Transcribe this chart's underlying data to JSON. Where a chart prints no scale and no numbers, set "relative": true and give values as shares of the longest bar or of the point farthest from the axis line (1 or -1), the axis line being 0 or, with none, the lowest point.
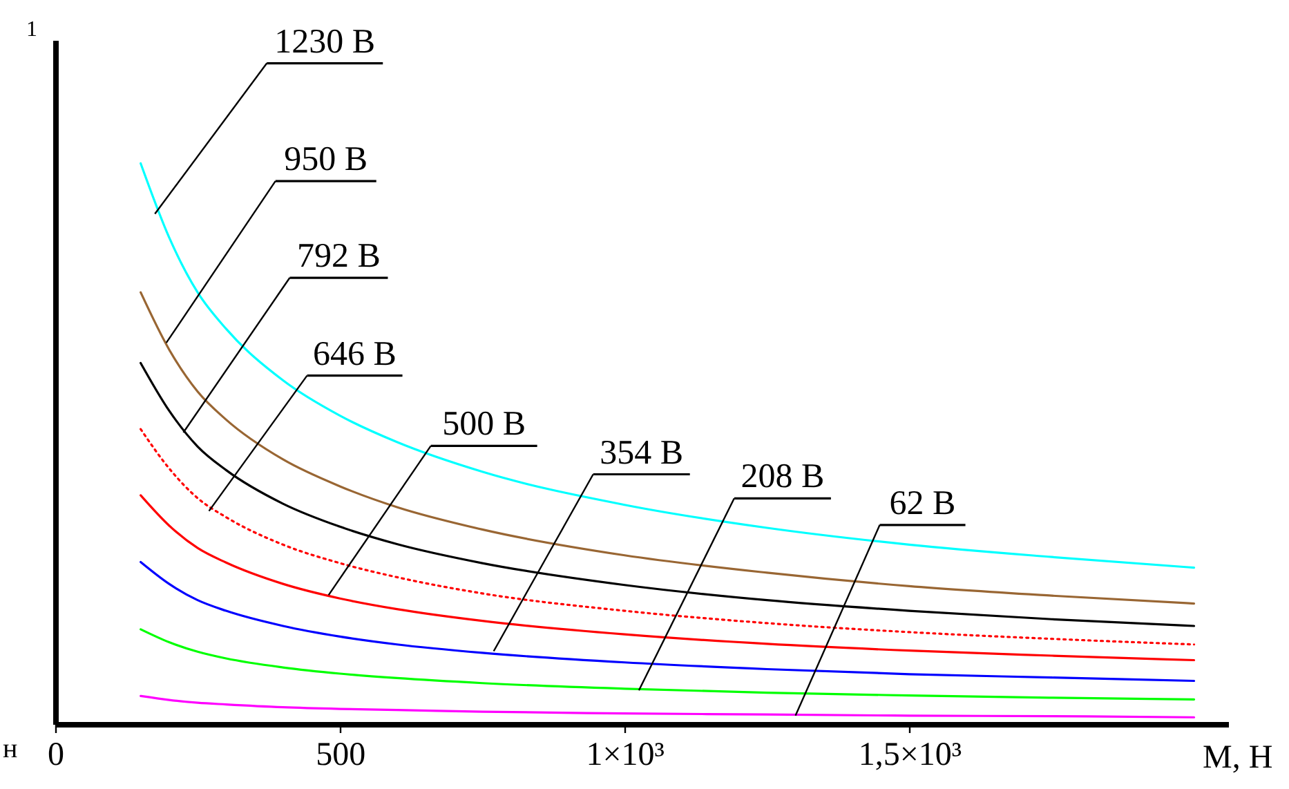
{
  "chart_data": {
    "type": "line",
    "relative": true,
    "xlabel": "M, Н",
    "xlim": [
      0,
      2060
    ],
    "xticks": [
      0,
      500,
      {
        "value": 1000,
        "label": "1×10³"
      },
      {
        "value": 1500,
        "label": "1,5×10³"
      }
    ],
    "x": [
      150,
      200,
      250,
      300,
      400,
      500,
      600,
      750,
      1000,
      1250,
      1500,
      1750,
      2000
    ],
    "line_style": "solid",
    "grid": false,
    "series": [
      {
        "color": "#00ffff",
        "values": [
          1.0,
          0.868,
          0.77,
          0.705,
          0.613,
          0.55,
          0.503,
          0.45,
          0.391,
          0.35,
          0.32,
          0.298,
          0.279
        ]
      },
      {
        "color": "#996633",
        "values": [
          0.77,
          0.668,
          0.593,
          0.543,
          0.472,
          0.424,
          0.387,
          0.347,
          0.301,
          0.27,
          0.246,
          0.229,
          0.215
        ]
      },
      {
        "color": "#000000",
        "values": [
          0.644,
          0.559,
          0.495,
          0.453,
          0.393,
          0.352,
          0.321,
          0.287,
          0.248,
          0.221,
          0.202,
          0.187,
          0.175
        ]
      },
      {
        "color": "#ff0000",
        "line_style": "dotted",
        "values": [
          0.526,
          0.456,
          0.403,
          0.369,
          0.32,
          0.287,
          0.262,
          0.233,
          0.202,
          0.18,
          0.164,
          0.152,
          0.142
        ]
      },
      {
        "color": "#ff0000",
        "values": [
          0.408,
          0.354,
          0.314,
          0.288,
          0.25,
          0.224,
          0.205,
          0.184,
          0.16,
          0.143,
          0.131,
          0.122,
          0.114
        ]
      },
      {
        "color": "#0000ff",
        "values": [
          0.289,
          0.25,
          0.221,
          0.202,
          0.175,
          0.156,
          0.142,
          0.127,
          0.11,
          0.098,
          0.089,
          0.083,
          0.077
        ]
      },
      {
        "color": "#00ff00",
        "values": [
          0.169,
          0.146,
          0.129,
          0.117,
          0.101,
          0.09,
          0.082,
          0.073,
          0.063,
          0.056,
          0.051,
          0.047,
          0.044
        ]
      },
      {
        "color": "#ff00ff",
        "values": [
          0.05,
          0.043,
          0.038,
          0.035,
          0.03,
          0.027,
          0.025,
          0.022,
          0.019,
          0.017,
          0.015,
          0.014,
          0.012
        ]
      }
    ],
    "annotations": [
      {
        "text": "1230 В",
        "x": 175,
        "y": 0.91
      },
      {
        "text": "950 В",
        "x": 195,
        "y": 0.68
      },
      {
        "text": "792 В",
        "x": 225,
        "y": 0.52
      },
      {
        "text": "646 В",
        "x": 270,
        "y": 0.38
      },
      {
        "text": "500 В",
        "x": 480,
        "y": 0.23
      },
      {
        "text": "354 В",
        "x": 770,
        "y": 0.13
      },
      {
        "text": "208 В",
        "x": 1025,
        "y": 0.06
      },
      {
        "text": "62 В",
        "x": 1300,
        "y": 0.015
      },
      "1",
      "н"
    ]
  }
}
